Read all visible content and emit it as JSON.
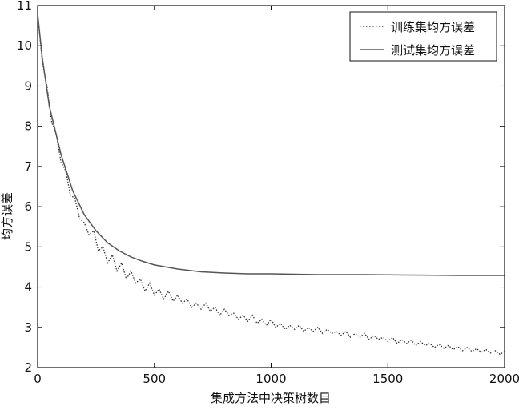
{
  "chart_data": {
    "type": "line",
    "title": "",
    "xlabel": "集成方法中决策树数目",
    "ylabel": "均方误差",
    "xlim": [
      0,
      2000
    ],
    "ylim": [
      2,
      11
    ],
    "xticks": [
      0,
      500,
      1000,
      1500,
      2000
    ],
    "yticks": [
      2,
      3,
      4,
      5,
      6,
      7,
      8,
      9,
      10,
      11
    ],
    "grid": false,
    "legend_position": "top-right",
    "series": [
      {
        "name": "训练集均方误差",
        "style": "dotted",
        "color": "#333333",
        "x": [
          0,
          20,
          40,
          60,
          80,
          100,
          120,
          140,
          160,
          180,
          200,
          220,
          240,
          260,
          280,
          300,
          320,
          340,
          360,
          380,
          400,
          420,
          440,
          460,
          480,
          500,
          520,
          540,
          560,
          580,
          600,
          620,
          640,
          660,
          680,
          700,
          720,
          740,
          760,
          780,
          800,
          820,
          840,
          860,
          880,
          900,
          920,
          940,
          960,
          980,
          1000,
          1020,
          1040,
          1060,
          1080,
          1100,
          1120,
          1140,
          1160,
          1180,
          1200,
          1220,
          1240,
          1260,
          1280,
          1300,
          1320,
          1340,
          1360,
          1380,
          1400,
          1420,
          1440,
          1460,
          1480,
          1500,
          1520,
          1540,
          1560,
          1580,
          1600,
          1620,
          1640,
          1660,
          1680,
          1700,
          1720,
          1740,
          1760,
          1780,
          1800,
          1820,
          1840,
          1860,
          1880,
          1900,
          1920,
          1940,
          1960,
          1980,
          2000
        ],
        "y": [
          10.8,
          9.6,
          9.0,
          8.1,
          7.8,
          7.1,
          6.9,
          6.3,
          6.2,
          5.7,
          5.6,
          5.3,
          5.4,
          4.9,
          5.0,
          4.6,
          4.8,
          4.4,
          4.6,
          4.2,
          4.4,
          4.1,
          4.2,
          3.9,
          4.1,
          3.8,
          3.95,
          3.7,
          3.9,
          3.65,
          3.8,
          3.6,
          3.7,
          3.5,
          3.6,
          3.45,
          3.6,
          3.4,
          3.5,
          3.3,
          3.45,
          3.3,
          3.35,
          3.2,
          3.3,
          3.15,
          3.3,
          3.1,
          3.2,
          3.05,
          3.2,
          3.0,
          3.1,
          2.95,
          3.05,
          2.95,
          3.05,
          2.9,
          3.0,
          2.9,
          3.0,
          2.85,
          2.95,
          2.85,
          2.9,
          2.8,
          2.9,
          2.75,
          2.85,
          2.75,
          2.85,
          2.7,
          2.8,
          2.7,
          2.75,
          2.65,
          2.75,
          2.6,
          2.7,
          2.6,
          2.68,
          2.55,
          2.65,
          2.55,
          2.6,
          2.5,
          2.58,
          2.48,
          2.55,
          2.45,
          2.52,
          2.42,
          2.5,
          2.4,
          2.47,
          2.38,
          2.45,
          2.36,
          2.42,
          2.33,
          2.4
        ]
      },
      {
        "name": "测试集均方误差",
        "style": "solid",
        "color": "#555555",
        "x": [
          0,
          20,
          50,
          100,
          150,
          200,
          250,
          300,
          350,
          400,
          450,
          500,
          600,
          700,
          800,
          900,
          1000,
          1200,
          1400,
          1600,
          1800,
          2000
        ],
        "y": [
          10.8,
          9.7,
          8.5,
          7.3,
          6.4,
          5.8,
          5.4,
          5.1,
          4.9,
          4.75,
          4.64,
          4.55,
          4.45,
          4.38,
          4.35,
          4.33,
          4.33,
          4.31,
          4.31,
          4.3,
          4.29,
          4.29
        ]
      }
    ]
  }
}
